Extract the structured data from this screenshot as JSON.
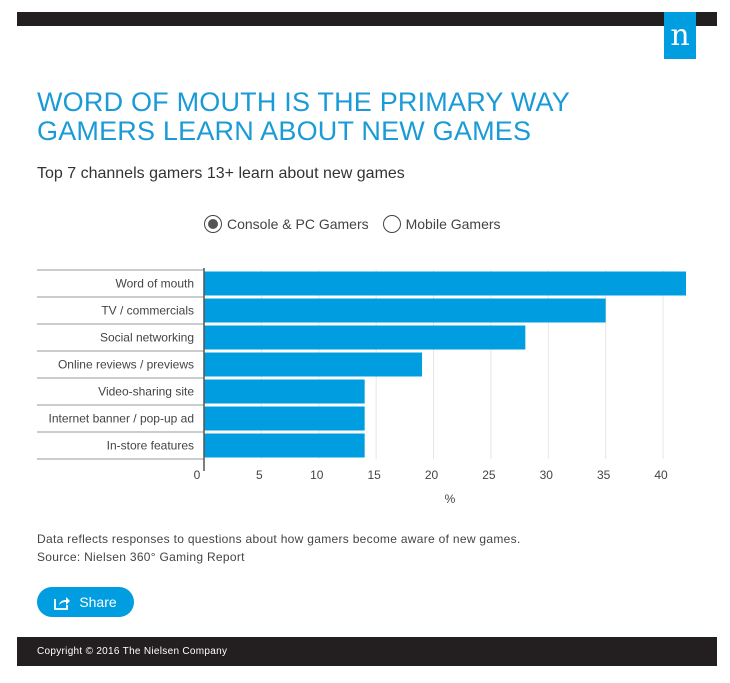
{
  "header": {
    "logo_text": "n",
    "brand_color": "#009de0"
  },
  "title_lines": [
    "WORD OF MOUTH IS THE PRIMARY WAY",
    "GAMERS LEARN ABOUT NEW GAMES"
  ],
  "subtitle": "Top 7 channels gamers 13+ learn about new games",
  "legend": {
    "options": [
      {
        "label": "Console & PC Gamers",
        "selected": true
      },
      {
        "label": "Mobile Gamers",
        "selected": false
      }
    ]
  },
  "chart_data": {
    "type": "bar",
    "orientation": "horizontal",
    "categories": [
      "Word of mouth",
      "TV / commercials",
      "Social networking",
      "Online reviews / previews",
      "Video-sharing site",
      "Internet banner / pop-up ad",
      "In-store features"
    ],
    "values": [
      42,
      35,
      28,
      19,
      14,
      14,
      14
    ],
    "xlabel": "%",
    "xlim": [
      0,
      42
    ],
    "xticks": [
      0,
      5,
      10,
      15,
      20,
      25,
      30,
      35,
      40
    ],
    "bar_color": "#009de0",
    "grid": true
  },
  "footnote": {
    "line1": "Data reflects responses to questions about how gamers become aware of new games.",
    "line2": "Source: Nielsen 360° Gaming Report"
  },
  "share_label": "Share",
  "copyright": "Copyright © 2016 The Nielsen Company"
}
